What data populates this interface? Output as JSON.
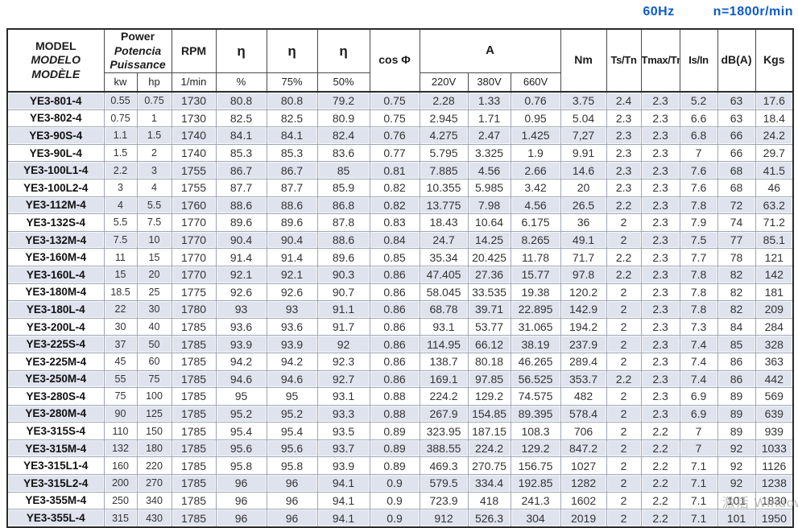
{
  "page": {
    "frequency": "60Hz",
    "speed": "n=1800r/min",
    "watermark": "激活 Windows",
    "accent_color": "#0d5bc6",
    "stripe_color": "#dfe3ee"
  },
  "table": {
    "header": {
      "model": [
        "MODEL",
        "MODELO",
        "MODÈLE"
      ],
      "power": [
        "Power",
        "Potencia",
        "Puissance"
      ],
      "power_units": [
        "kw",
        "hp"
      ],
      "rpm": "RPM",
      "rpm_unit": "1/min",
      "eta": "η",
      "eta_subs": [
        "%",
        "75%",
        "50%"
      ],
      "cos_phi": "cos Φ",
      "current": "A",
      "current_subs": [
        "220V",
        "380V",
        "660V"
      ],
      "nm": "Nm",
      "ts_tn": "Ts/Tn",
      "tmax_tn": "Tmax/Tn",
      "is_in": "Is/In",
      "db": "dB(A)",
      "kgs": "Kgs"
    },
    "cell_names": [
      "model",
      "kw",
      "hp",
      "rpm",
      "eta-100",
      "eta-75",
      "eta-50",
      "cos-phi",
      "a-220v",
      "a-380v",
      "a-660v",
      "nm",
      "ts-tn",
      "tmax-tn",
      "is-in",
      "db-a",
      "kgs"
    ],
    "rows": [
      [
        "YE3-801-4",
        "0.55",
        "0.75",
        "1730",
        "80.8",
        "80.8",
        "79.2",
        "0.75",
        "2.28",
        "1.33",
        "0.76",
        "3.75",
        "2.4",
        "2.3",
        "5.2",
        "63",
        "17.6"
      ],
      [
        "YE3-802-4",
        "0.75",
        "1",
        "1730",
        "82.5",
        "82.5",
        "80.9",
        "0.75",
        "2.945",
        "1.71",
        "0.95",
        "5.04",
        "2.3",
        "2.3",
        "6.6",
        "63",
        "18.4"
      ],
      [
        "YE3-90S-4",
        "1.1",
        "1.5",
        "1740",
        "84.1",
        "84.1",
        "82.4",
        "0.76",
        "4.275",
        "2.47",
        "1.425",
        "7,27",
        "2.3",
        "2.3",
        "6.8",
        "66",
        "24.2"
      ],
      [
        "YE3-90L-4",
        "1.5",
        "2",
        "1740",
        "85.3",
        "85.3",
        "83.6",
        "0.77",
        "5.795",
        "3.325",
        "1.9",
        "9.91",
        "2.3",
        "2.3",
        "7",
        "66",
        "29.7"
      ],
      [
        "YE3-100L1-4",
        "2.2",
        "3",
        "1755",
        "86.7",
        "86.7",
        "85",
        "0.81",
        "7.885",
        "4.56",
        "2.66",
        "14.6",
        "2.3",
        "2.3",
        "7.6",
        "68",
        "41.5"
      ],
      [
        "YE3-100L2-4",
        "3",
        "4",
        "1755",
        "87.7",
        "87.7",
        "85.9",
        "0.82",
        "10.355",
        "5.985",
        "3.42",
        "20",
        "2.3",
        "2.3",
        "7.6",
        "68",
        "46"
      ],
      [
        "YE3-112M-4",
        "4",
        "5.5",
        "1760",
        "88.6",
        "88.6",
        "86.8",
        "0.82",
        "13.775",
        "7.98",
        "4.56",
        "26.5",
        "2.2",
        "2.3",
        "7.8",
        "72",
        "63.2"
      ],
      [
        "YE3-132S-4",
        "5.5",
        "7.5",
        "1770",
        "89.6",
        "89.6",
        "87.8",
        "0.83",
        "18.43",
        "10.64",
        "6.175",
        "36",
        "2",
        "2.3",
        "7.9",
        "74",
        "71.2"
      ],
      [
        "YE3-132M-4",
        "7.5",
        "10",
        "1770",
        "90.4",
        "90.4",
        "88.6",
        "0.84",
        "24.7",
        "14.25",
        "8.265",
        "49.1",
        "2",
        "2.3",
        "7.5",
        "77",
        "85.1"
      ],
      [
        "YE3-160M-4",
        "11",
        "15",
        "1770",
        "91.4",
        "91.4",
        "89.6",
        "0.85",
        "35.34",
        "20.425",
        "11.78",
        "71.7",
        "2.2",
        "2.3",
        "7.7",
        "78",
        "121"
      ],
      [
        "YE3-160L-4",
        "15",
        "20",
        "1770",
        "92.1",
        "92.1",
        "90.3",
        "0.86",
        "47.405",
        "27.36",
        "15.77",
        "97.8",
        "2.2",
        "2.3",
        "7.8",
        "82",
        "142"
      ],
      [
        "YE3-180M-4",
        "18.5",
        "25",
        "1775",
        "92.6",
        "92.6",
        "90.7",
        "0.86",
        "58.045",
        "33.535",
        "19.38",
        "120.2",
        "2",
        "2.3",
        "7.8",
        "82",
        "181"
      ],
      [
        "YE3-180L-4",
        "22",
        "30",
        "1780",
        "93",
        "93",
        "91.1",
        "0.86",
        "68.78",
        "39.71",
        "22.895",
        "142.9",
        "2",
        "2.3",
        "7.8",
        "82",
        "209"
      ],
      [
        "YE3-200L-4",
        "30",
        "40",
        "1785",
        "93.6",
        "93.6",
        "91.7",
        "0.86",
        "93.1",
        "53.77",
        "31.065",
        "194.2",
        "2",
        "2.3",
        "7.3",
        "84",
        "284"
      ],
      [
        "YE3-225S-4",
        "37",
        "50",
        "1785",
        "93.9",
        "93.9",
        "92",
        "0.86",
        "114.95",
        "66.12",
        "38.19",
        "237.9",
        "2",
        "2.3",
        "7.4",
        "85",
        "328"
      ],
      [
        "YE3-225M-4",
        "45",
        "60",
        "1785",
        "94.2",
        "94.2",
        "92.3",
        "0.86",
        "138.7",
        "80.18",
        "46.265",
        "289.4",
        "2",
        "2.3",
        "7.4",
        "86",
        "363"
      ],
      [
        "YE3-250M-4",
        "55",
        "75",
        "1785",
        "94.6",
        "94.6",
        "92.7",
        "0.86",
        "169.1",
        "97.85",
        "56.525",
        "353.7",
        "2.2",
        "2.3",
        "7.4",
        "86",
        "442"
      ],
      [
        "YE3-280S-4",
        "75",
        "100",
        "1785",
        "95",
        "95",
        "93.1",
        "0.88",
        "224.2",
        "129.2",
        "74.575",
        "482",
        "2",
        "2.3",
        "6.9",
        "89",
        "569"
      ],
      [
        "YE3-280M-4",
        "90",
        "125",
        "1785",
        "95.2",
        "95.2",
        "93.3",
        "0.88",
        "267.9",
        "154.85",
        "89.395",
        "578.4",
        "2",
        "2.3",
        "6.9",
        "89",
        "639"
      ],
      [
        "YE3-315S-4",
        "110",
        "150",
        "1785",
        "95.4",
        "95.4",
        "93.5",
        "0.89",
        "323.95",
        "187.15",
        "108.3",
        "706",
        "2",
        "2.2",
        "7",
        "89",
        "939"
      ],
      [
        "YE3-315M-4",
        "132",
        "180",
        "1785",
        "95.6",
        "95.6",
        "93.7",
        "0.89",
        "388.55",
        "224.2",
        "129.2",
        "847.2",
        "2",
        "2.2",
        "7",
        "92",
        "1033"
      ],
      [
        "YE3-315L1-4",
        "160",
        "220",
        "1785",
        "95.8",
        "95.8",
        "93.9",
        "0.89",
        "469.3",
        "270.75",
        "156.75",
        "1027",
        "2",
        "2.2",
        "7.1",
        "92",
        "1126"
      ],
      [
        "YE3-315L2-4",
        "200",
        "270",
        "1785",
        "96",
        "96",
        "94.1",
        "0.9",
        "579.5",
        "334.4",
        "192.85",
        "1282",
        "2",
        "2.2",
        "7.1",
        "92",
        "1238"
      ],
      [
        "YE3-355M-4",
        "250",
        "340",
        "1785",
        "96",
        "96",
        "94.1",
        "0.9",
        "723.9",
        "418",
        "241.3",
        "1602",
        "2",
        "2.2",
        "7.1",
        "101",
        "1830"
      ],
      [
        "YE3-355L-4",
        "315",
        "430",
        "1785",
        "96",
        "96",
        "94.1",
        "0.9",
        "912",
        "526.3",
        "304",
        "2019",
        "2",
        "2.2",
        "7.1",
        "101",
        "1950"
      ]
    ]
  }
}
